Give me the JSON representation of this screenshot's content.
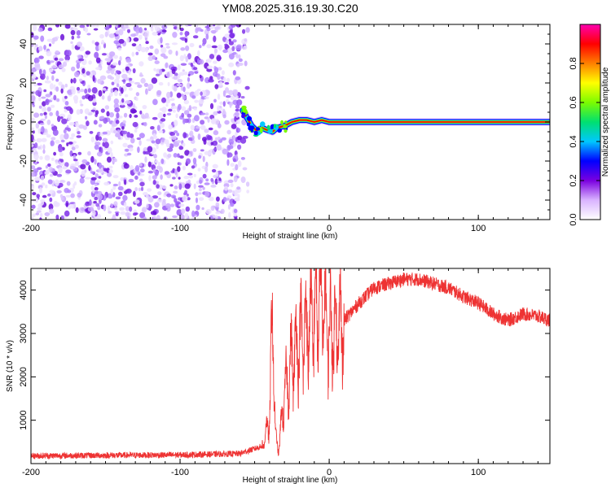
{
  "title": "YM08.2025.316.19.30.C20",
  "chart_data": [
    {
      "type": "heatmap",
      "name": "spectrogram",
      "xlabel": "Height of straight line (km)",
      "ylabel": "Frequency (Hz)",
      "xlim": [
        -200,
        148
      ],
      "ylim": [
        -50,
        50
      ],
      "xticks": [
        -200,
        -100,
        0,
        100
      ],
      "yticks": [
        -40,
        -20,
        0,
        20,
        40
      ],
      "noise_region_x": [
        -200,
        -60
      ],
      "signal_track": {
        "x": [
          -58,
          -55,
          -52,
          -48,
          -45,
          -42,
          -38,
          -35,
          -30,
          -25,
          -20,
          -15,
          -10,
          -5,
          0,
          10,
          30,
          60,
          100,
          148
        ],
        "y": [
          6,
          2,
          -2,
          -5,
          -3,
          -4,
          -5,
          -3,
          -2,
          0,
          1,
          1,
          0,
          1,
          0,
          0,
          0,
          0,
          0,
          0
        ]
      },
      "colorbar": {
        "label": "Normalized spectral amplitude",
        "range": [
          0.0,
          1.0
        ],
        "ticks": [
          "0.0",
          "0.2",
          "0.4",
          "0.6",
          "0.8"
        ],
        "colors": [
          "#ffffff",
          "#d9b3ff",
          "#7a00e0",
          "#0000ff",
          "#00c8ff",
          "#00e070",
          "#7cfc00",
          "#ffff00",
          "#ff8000",
          "#ff0000",
          "#ff00b0"
        ]
      }
    },
    {
      "type": "line",
      "name": "snr",
      "xlabel": "Height of straight line (km)",
      "ylabel": "SNR (10 * v/v)",
      "xlim": [
        -200,
        148
      ],
      "ylim": [
        0,
        4500
      ],
      "xticks": [
        -200,
        -100,
        0,
        100
      ],
      "yticks": [
        1000,
        2000,
        3000,
        4000
      ],
      "color": "#ee3333",
      "envelope": {
        "x": [
          -200,
          -150,
          -100,
          -60,
          -45,
          -40,
          -38,
          -36,
          -34,
          -30,
          -25,
          -20,
          -15,
          -10,
          -5,
          0,
          10,
          20,
          30,
          40,
          50,
          60,
          70,
          80,
          90,
          100,
          110,
          120,
          130,
          140,
          148
        ],
        "y": [
          180,
          190,
          200,
          230,
          400,
          1000,
          3600,
          600,
          300,
          1600,
          2400,
          2800,
          3100,
          3500,
          3800,
          3000,
          3300,
          3700,
          4050,
          4150,
          4250,
          4250,
          4150,
          4050,
          3850,
          3700,
          3450,
          3300,
          3450,
          3400,
          3300
        ]
      }
    }
  ]
}
